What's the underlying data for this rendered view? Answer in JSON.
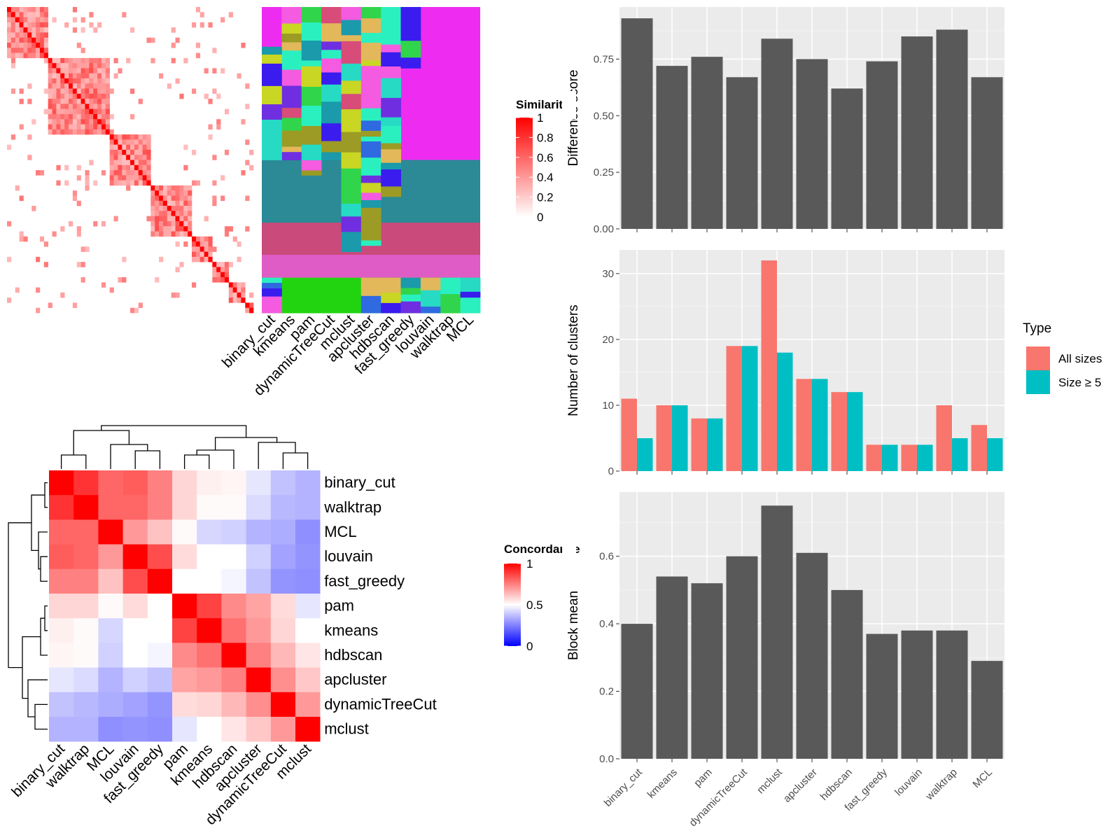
{
  "methods_order_bars": [
    "binary_cut",
    "kmeans",
    "pam",
    "dynamicTreeCut",
    "mclust",
    "apcluster",
    "hdbscan",
    "fast_greedy",
    "louvain",
    "walktrap",
    "MCL"
  ],
  "chart_data": [
    {
      "type": "heatmap",
      "legend_title": "Similarity",
      "legend_ticks": [
        "0",
        "0.2",
        "0.4",
        "0.6",
        "0.8",
        "1"
      ],
      "colors": {
        "low": "#ffffff",
        "high": "#ff0000"
      },
      "note_values": "similarity matrix of terms; blocks along diagonal"
    },
    {
      "type": "heatmap",
      "title": "",
      "columns": [
        "binary_cut",
        "kmeans",
        "pam",
        "dynamicTreeCut",
        "mclust",
        "apcluster",
        "hdbscan",
        "fast_greedy",
        "louvain",
        "walktrap",
        "MCL"
      ]
    },
    {
      "type": "heatmap",
      "legend_title": "Concordance",
      "legend_ticks": [
        "0",
        "0.5",
        "1"
      ],
      "colors": {
        "low": "#0000ff",
        "mid": "#ffffff",
        "high": "#ff0000"
      },
      "rows": [
        "binary_cut",
        "walktrap",
        "MCL",
        "louvain",
        "fast_greedy",
        "pam",
        "kmeans",
        "hdbscan",
        "apcluster",
        "dynamicTreeCut",
        "mclust"
      ],
      "columns": [
        "binary_cut",
        "walktrap",
        "MCL",
        "louvain",
        "fast_greedy",
        "pam",
        "kmeans",
        "hdbscan",
        "apcluster",
        "dynamicTreeCut",
        "mclust"
      ],
      "values": [
        [
          1.0,
          0.9,
          0.8,
          0.82,
          0.75,
          0.58,
          0.53,
          0.52,
          0.45,
          0.38,
          0.35
        ],
        [
          0.9,
          1.0,
          0.8,
          0.8,
          0.75,
          0.58,
          0.51,
          0.51,
          0.43,
          0.36,
          0.35
        ],
        [
          0.8,
          0.8,
          1.0,
          0.7,
          0.62,
          0.51,
          0.42,
          0.41,
          0.35,
          0.34,
          0.28
        ],
        [
          0.82,
          0.8,
          0.7,
          1.0,
          0.85,
          0.57,
          0.5,
          0.5,
          0.41,
          0.32,
          0.29
        ],
        [
          0.75,
          0.75,
          0.62,
          0.85,
          1.0,
          0.5,
          0.5,
          0.48,
          0.38,
          0.29,
          0.28
        ],
        [
          0.58,
          0.58,
          0.51,
          0.57,
          0.5,
          1.0,
          0.87,
          0.73,
          0.68,
          0.57,
          0.45
        ],
        [
          0.53,
          0.51,
          0.42,
          0.5,
          0.5,
          0.87,
          1.0,
          0.78,
          0.7,
          0.58,
          0.5
        ],
        [
          0.52,
          0.51,
          0.41,
          0.5,
          0.48,
          0.73,
          0.78,
          1.0,
          0.75,
          0.64,
          0.55
        ],
        [
          0.45,
          0.43,
          0.35,
          0.41,
          0.38,
          0.68,
          0.7,
          0.75,
          1.0,
          0.72,
          0.61
        ],
        [
          0.38,
          0.36,
          0.34,
          0.32,
          0.29,
          0.57,
          0.58,
          0.64,
          0.72,
          1.0,
          0.7
        ],
        [
          0.35,
          0.35,
          0.28,
          0.29,
          0.28,
          0.45,
          0.5,
          0.55,
          0.61,
          0.7,
          1.0
        ]
      ]
    },
    {
      "type": "bar",
      "categories": [
        "binary_cut",
        "kmeans",
        "pam",
        "dynamicTreeCut",
        "mclust",
        "apcluster",
        "hdbscan",
        "fast_greedy",
        "louvain",
        "walktrap",
        "MCL"
      ],
      "values": [
        0.93,
        0.72,
        0.76,
        0.67,
        0.84,
        0.75,
        0.62,
        0.74,
        0.85,
        0.88,
        0.67
      ],
      "ylabel": "Difference score",
      "ylim": [
        0,
        0.98
      ],
      "yticks": [
        "0.00",
        "0.25",
        "0.50",
        "0.75"
      ],
      "bar_color": "#595959"
    },
    {
      "type": "bar",
      "categories": [
        "binary_cut",
        "kmeans",
        "pam",
        "dynamicTreeCut",
        "mclust",
        "apcluster",
        "hdbscan",
        "fast_greedy",
        "louvain",
        "walktrap",
        "MCL"
      ],
      "series": [
        {
          "name": "All sizes",
          "values": [
            11,
            10,
            8,
            19,
            32,
            14,
            12,
            4,
            4,
            10,
            7
          ],
          "color": "#F8766D"
        },
        {
          "name": "Size ≥ 5",
          "values": [
            5,
            10,
            8,
            19,
            18,
            14,
            12,
            4,
            4,
            5,
            5
          ],
          "color": "#00BFC4"
        }
      ],
      "ylabel": "Number of clusters",
      "ylim": [
        0,
        33.6
      ],
      "yticks": [
        "0",
        "10",
        "20",
        "30"
      ],
      "legend_title": "Type",
      "legend_position": "right"
    },
    {
      "type": "bar",
      "categories": [
        "binary_cut",
        "kmeans",
        "pam",
        "dynamicTreeCut",
        "mclust",
        "apcluster",
        "hdbscan",
        "fast_greedy",
        "louvain",
        "walktrap",
        "MCL"
      ],
      "values": [
        0.4,
        0.54,
        0.52,
        0.6,
        0.75,
        0.61,
        0.5,
        0.37,
        0.38,
        0.38,
        0.29
      ],
      "ylabel": "Block mean",
      "ylim": [
        0,
        0.79
      ],
      "yticks": [
        "0.0",
        "0.2",
        "0.4",
        "0.6"
      ],
      "bar_color": "#595959"
    }
  ]
}
